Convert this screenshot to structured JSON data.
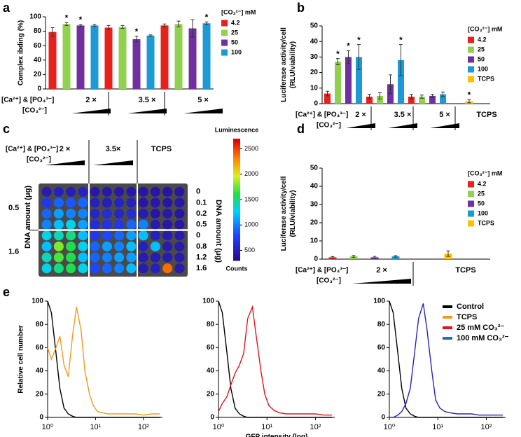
{
  "chart_data": [
    {
      "type": "bar",
      "panel": "a",
      "y_label": "Complex ibding (%)",
      "ylim": [
        0,
        100
      ],
      "yticks": [
        0,
        20,
        40,
        60,
        80,
        100
      ],
      "categories": [
        "2 ×",
        "3.5 ×",
        "5 ×"
      ],
      "x_label_line1": "[Ca²⁺] & [PO₄³⁻]",
      "x_label_line2": "[CO₃²⁻]",
      "legend_title": "[CO₃²⁻] mM",
      "series": [
        {
          "name": "4.2",
          "color": "#e8211d",
          "values": [
            79,
            85,
            88
          ],
          "errors": [
            6,
            3,
            2
          ],
          "significance": [
            null,
            null,
            null
          ]
        },
        {
          "name": "25",
          "color": "#92d050",
          "values": [
            90,
            86,
            90
          ],
          "errors": [
            2,
            2,
            4
          ],
          "significance": [
            "*",
            null,
            null
          ]
        },
        {
          "name": "50",
          "color": "#7030a0",
          "values": [
            88,
            69,
            84
          ],
          "errors": [
            1.5,
            4,
            12
          ],
          "significance": [
            "*",
            "*",
            null
          ]
        },
        {
          "name": "100",
          "color": "#1b9ad6",
          "values": [
            88,
            74,
            91
          ],
          "errors": [
            1.5,
            1,
            2
          ],
          "significance": [
            null,
            null,
            "*"
          ]
        }
      ]
    },
    {
      "type": "bar",
      "panel": "b",
      "y_label": [
        "Luciferase activity/cell",
        "(RLU/viability)"
      ],
      "ylim": [
        0,
        50
      ],
      "yticks": [
        0,
        10,
        20,
        30,
        40,
        50
      ],
      "categories": [
        "2 ×",
        "3.5 ×",
        "5 ×",
        "TCPS"
      ],
      "x_label_line1": "[Ca²⁺] & [PO₄³⁻]",
      "x_label_line2": "[CO₃²⁻]",
      "legend_title": "[CO₃²⁻] mM",
      "series": [
        {
          "name": "4.2",
          "color": "#e8211d",
          "values": [
            6.5,
            4.5,
            4.5,
            null
          ],
          "errors": [
            1.5,
            1.5,
            1.5,
            null
          ],
          "significance": [
            null,
            null,
            null,
            null
          ]
        },
        {
          "name": "25",
          "color": "#92d050",
          "values": [
            27,
            5,
            4.5,
            null
          ],
          "errors": [
            2,
            2,
            1,
            null
          ],
          "significance": [
            "*",
            null,
            null,
            null
          ]
        },
        {
          "name": "50",
          "color": "#7030a0",
          "values": [
            30,
            12.5,
            5,
            null
          ],
          "errors": [
            4,
            6,
            1,
            null
          ],
          "significance": [
            "*",
            null,
            null,
            null
          ]
        },
        {
          "name": "100",
          "color": "#1b9ad6",
          "values": [
            30,
            28,
            6,
            null
          ],
          "errors": [
            8,
            10,
            1.5,
            null
          ],
          "significance": [
            "*",
            "*",
            null,
            null
          ]
        },
        {
          "name": "TCPS",
          "color": "#ffc000",
          "values": [
            null,
            null,
            null,
            1.5
          ],
          "errors": [
            null,
            null,
            null,
            1
          ],
          "significance": [
            null,
            null,
            null,
            "*"
          ]
        }
      ]
    },
    {
      "type": "heatmap",
      "panel": "c",
      "x_label_line1": "[Ca²⁺] & [PO₄³⁻]",
      "x_label_line2": "[CO₃²⁻]",
      "column_groups": [
        "2 ×",
        "3.5×",
        "TCPS"
      ],
      "y_label": "DNA amount (μg)",
      "y2_label": "DNA amount (μg)",
      "row_groups": [
        "0.5",
        "1.6"
      ],
      "rows": [
        "0",
        "0.1",
        "0.2",
        "0.5",
        "0",
        "0.8",
        "1.2",
        "1.6"
      ],
      "colorbar_title": "Luminescence",
      "colorbar_unit": "Counts",
      "zlim": [
        300,
        2700
      ],
      "zticks": [
        500,
        1000,
        1500,
        2000,
        2500
      ],
      "values": [
        [
          450,
          500,
          480,
          520,
          420,
          420,
          420,
          420,
          400,
          400,
          400,
          400
        ],
        [
          700,
          900,
          850,
          900,
          500,
          480,
          520,
          500,
          400,
          420,
          400,
          420
        ],
        [
          900,
          1100,
          1000,
          1000,
          550,
          600,
          550,
          600,
          450,
          400,
          420,
          400
        ],
        [
          1000,
          1200,
          1300,
          1100,
          600,
          650,
          700,
          900,
          1000,
          450,
          420,
          420
        ],
        [
          1300,
          1400,
          1500,
          1200,
          700,
          800,
          900,
          1100,
          1200,
          500,
          450,
          450
        ],
        [
          1200,
          1800,
          1600,
          1300,
          900,
          1100,
          1000,
          1200,
          500,
          1200,
          450,
          450
        ],
        [
          1400,
          1700,
          1600,
          1200,
          900,
          1000,
          1100,
          1100,
          450,
          450,
          450,
          450
        ],
        [
          1300,
          1500,
          1600,
          1300,
          800,
          900,
          1000,
          1200,
          450,
          500,
          2400,
          450
        ]
      ]
    },
    {
      "type": "bar",
      "panel": "d",
      "y_label": [
        "Luciferase activity/cell",
        "(RLU/viability)"
      ],
      "ylim": [
        0,
        50
      ],
      "yticks": [
        0,
        10,
        20,
        30,
        40,
        50
      ],
      "categories": [
        "2 ×",
        "TCPS"
      ],
      "x_label_line1": "[Ca²⁺] & [PO₄³⁻]",
      "x_label_line2": "[CO₃²⁻]",
      "legend_title": "[CO₃²⁻] mM",
      "series": [
        {
          "name": "4.2",
          "color": "#e8211d",
          "values": [
            1,
            null
          ],
          "errors": [
            0.4,
            null
          ]
        },
        {
          "name": "25",
          "color": "#92d050",
          "values": [
            1.5,
            null
          ],
          "errors": [
            0.5,
            null
          ]
        },
        {
          "name": "50",
          "color": "#7030a0",
          "values": [
            1,
            null
          ],
          "errors": [
            0.5,
            null
          ]
        },
        {
          "name": "100",
          "color": "#1b9ad6",
          "values": [
            1.5,
            null
          ],
          "errors": [
            0.4,
            null
          ]
        },
        {
          "name": "TCPS",
          "color": "#ffc000",
          "values": [
            null,
            3
          ],
          "errors": [
            null,
            1.5
          ]
        }
      ]
    },
    {
      "type": "line",
      "panel": "e",
      "y_label": "Relative cell number",
      "xlog": true,
      "xlim": [
        1,
        250
      ],
      "ylim": [
        0,
        100
      ],
      "xticks": [
        {
          "value": 1,
          "label": "10⁰"
        },
        {
          "value": 10,
          "label": "10¹"
        },
        {
          "value": 100,
          "label": "10²"
        }
      ],
      "yticks": [
        0,
        20,
        40,
        60,
        80,
        100
      ],
      "x": [
        1,
        1.2,
        1.5,
        1.8,
        2.2,
        2.7,
        3.3,
        4,
        5,
        6,
        7.5,
        9,
        11,
        14,
        18,
        25,
        35,
        50,
        70,
        100,
        150,
        220
      ],
      "series": [
        {
          "color": "#000000",
          "values": [
            100,
            90,
            55,
            25,
            8,
            3,
            1,
            0,
            0,
            0,
            0,
            0,
            0,
            0,
            0,
            0,
            0,
            0,
            0,
            0,
            0,
            0
          ]
        },
        {
          "color": "#f39a1e",
          "values": [
            60,
            50,
            60,
            70,
            45,
            35,
            70,
            95,
            75,
            40,
            20,
            10,
            5,
            4,
            3,
            3,
            3,
            3,
            3,
            2,
            3,
            3
          ]
        }
      ]
    },
    {
      "type": "line",
      "x_label": "GFP intensity (log)",
      "xlog": true,
      "xlim": [
        1,
        250
      ],
      "ylim": [
        0,
        100
      ],
      "xticks": [
        {
          "value": 1,
          "label": "10⁰"
        },
        {
          "value": 10,
          "label": "10¹"
        },
        {
          "value": 100,
          "label": "10²"
        }
      ],
      "yticks": [
        0,
        20,
        40,
        60,
        80,
        100
      ],
      "x": [
        1,
        1.2,
        1.5,
        1.8,
        2.2,
        2.7,
        3.3,
        4,
        5,
        6,
        7.5,
        9,
        11,
        14,
        18,
        25,
        35,
        50,
        70,
        100,
        150,
        220
      ],
      "series": [
        {
          "color": "#000000",
          "values": [
            100,
            90,
            55,
            25,
            8,
            3,
            1,
            0,
            0,
            0,
            0,
            0,
            0,
            0,
            0,
            0,
            0,
            0,
            0,
            0,
            0,
            0
          ]
        },
        {
          "color": "#e3141b",
          "values": [
            5,
            12,
            18,
            28,
            38,
            45,
            55,
            85,
            95,
            70,
            40,
            20,
            10,
            6,
            4,
            3,
            3,
            3,
            3,
            3,
            2,
            2
          ]
        }
      ]
    },
    {
      "type": "line",
      "xlog": true,
      "xlim": [
        1,
        250
      ],
      "ylim": [
        0,
        100
      ],
      "xticks": [
        {
          "value": 1,
          "label": "10⁰"
        },
        {
          "value": 10,
          "label": "10¹"
        },
        {
          "value": 100,
          "label": "10²"
        }
      ],
      "yticks": [
        0,
        20,
        40,
        60,
        80,
        100
      ],
      "x": [
        1,
        1.2,
        1.5,
        1.8,
        2.2,
        2.7,
        3.3,
        4,
        5,
        6,
        7.5,
        9,
        11,
        14,
        18,
        25,
        35,
        50,
        70,
        100,
        150,
        220
      ],
      "legend": [
        {
          "name": "Control",
          "color": "#000000"
        },
        {
          "name": "TCPS",
          "color": "#f39a1e"
        },
        {
          "name": "25 mM CO₃²⁻",
          "color": "#e3141b"
        },
        {
          "name": "100 mM CO₃²⁻",
          "color": "#1f6fb5"
        }
      ],
      "series": [
        {
          "color": "#000000",
          "values": [
            100,
            90,
            55,
            25,
            8,
            3,
            1,
            0,
            0,
            0,
            0,
            0,
            0,
            0,
            0,
            0,
            0,
            0,
            0,
            0,
            0,
            0
          ]
        },
        {
          "color": "#2323c8",
          "values": [
            0,
            0,
            2,
            5,
            12,
            25,
            55,
            85,
            98,
            75,
            40,
            15,
            8,
            5,
            4,
            3,
            3,
            3,
            2,
            2,
            2,
            2
          ]
        }
      ]
    }
  ]
}
